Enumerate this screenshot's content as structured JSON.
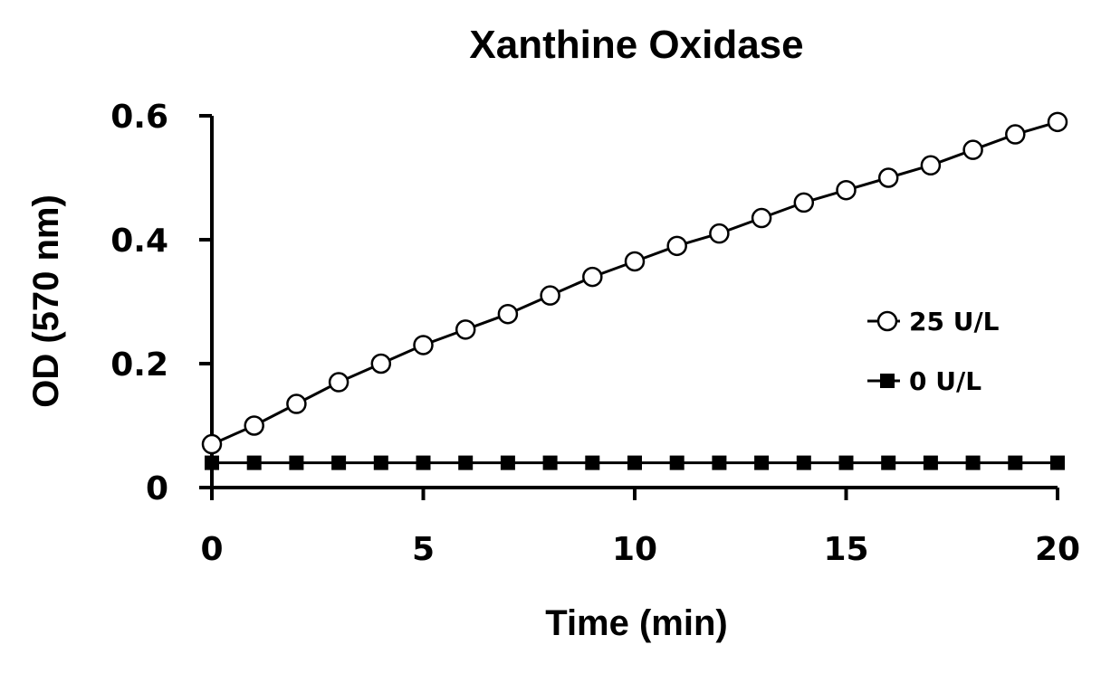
{
  "chart_data": {
    "type": "line",
    "title": "Xanthine Oxidase",
    "xlabel": "Time (min)",
    "ylabel": "OD (570 nm)",
    "xlim": [
      0,
      20
    ],
    "ylim": [
      0,
      0.6
    ],
    "x_ticks": [
      0,
      5,
      10,
      15,
      20
    ],
    "x_tick_labels": [
      "0",
      "5",
      "10",
      "15",
      "20"
    ],
    "y_ticks": [
      0,
      0.2,
      0.4,
      0.6
    ],
    "y_tick_labels": [
      "0",
      "0.2",
      "0.4",
      "0.6"
    ],
    "grid": false,
    "legend_position": "right",
    "x": [
      0,
      1,
      2,
      3,
      4,
      5,
      6,
      7,
      8,
      9,
      10,
      11,
      12,
      13,
      14,
      15,
      16,
      17,
      18,
      19,
      20
    ],
    "series": [
      {
        "name": "25 U/L",
        "marker": "open-circle",
        "color": "#000000",
        "values": [
          0.07,
          0.1,
          0.135,
          0.17,
          0.2,
          0.23,
          0.255,
          0.28,
          0.31,
          0.34,
          0.365,
          0.39,
          0.41,
          0.435,
          0.46,
          0.48,
          0.5,
          0.52,
          0.545,
          0.57,
          0.59
        ]
      },
      {
        "name": "0 U/L",
        "marker": "filled-square",
        "color": "#000000",
        "values": [
          0.04,
          0.04,
          0.04,
          0.04,
          0.04,
          0.04,
          0.04,
          0.04,
          0.04,
          0.04,
          0.04,
          0.04,
          0.04,
          0.04,
          0.04,
          0.04,
          0.04,
          0.04,
          0.04,
          0.04,
          0.04
        ]
      }
    ]
  }
}
